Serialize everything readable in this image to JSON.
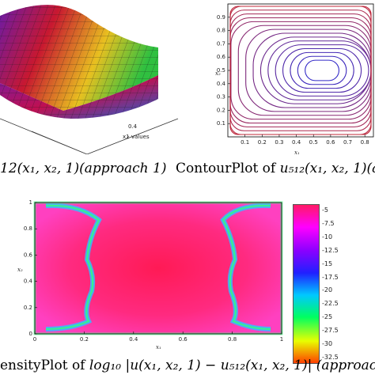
{
  "surface_plot": {
    "xticks": [
      "0.4"
    ],
    "xlabel": "x1 values",
    "caption": "12(x₁, x₂, 1)(approach 1)"
  },
  "contour_plot": {
    "caption_prefix": "ContourPlot of",
    "caption_math": "u₅₁₂(x₁, x₂, 1)(a",
    "xlabel": "x₁",
    "ylabel": "x₂",
    "colors": {
      "inner": "#2a2ad0",
      "outer": "#c0283a"
    }
  },
  "density_plot": {
    "caption_prefix": "ensityPlot of",
    "caption_math": "log₁₀ |u(x₁, x₂, 1) − u₅₁₂(x₁, x₂, 1)| (approach",
    "xlabel": "x₁",
    "ylabel": "x₂"
  },
  "colorbar": {
    "ticks": [
      "-5",
      "-7.5",
      "-10",
      "-12.5",
      "-15",
      "-17.5",
      "-20",
      "-22.5",
      "-25",
      "-27.5",
      "-30",
      "-32.5"
    ],
    "colors": [
      "#ff1a66",
      "#ff00ff",
      "#8a00ff",
      "#2020ff",
      "#00c8ff",
      "#00ff60",
      "#e8ff00",
      "#ff4000"
    ]
  },
  "chart_data": [
    {
      "type": "surface",
      "title": "",
      "xlabel": "x1 values",
      "x_ticks": [
        0.4
      ]
    },
    {
      "type": "contour",
      "title": "",
      "xlabel": "x₁",
      "ylabel": "x₂",
      "x_ticks": [
        0.1,
        0.2,
        0.3,
        0.4,
        0.5,
        0.6,
        0.7,
        0.8
      ],
      "y_ticks": [
        0.1,
        0.2,
        0.3,
        0.4,
        0.5,
        0.6,
        0.7,
        0.8,
        0.9
      ],
      "xlim": [
        0,
        0.85
      ],
      "ylim": [
        0,
        1
      ],
      "center": [
        0.55,
        0.5
      ],
      "levels": 16
    },
    {
      "type": "heatmap",
      "title": "",
      "xlabel": "x₁",
      "ylabel": "x₂",
      "x_ticks": [
        0,
        0.2,
        0.4,
        0.6,
        0.8,
        1
      ],
      "y_ticks": [
        0,
        0.2,
        0.4,
        0.6,
        0.8,
        1
      ],
      "xlim": [
        0,
        1
      ],
      "ylim": [
        0,
        1
      ],
      "colorbar_ticks": [
        -5,
        -7.5,
        -10,
        -12.5,
        -15,
        -17.5,
        -20,
        -22.5,
        -25,
        -27.5,
        -30,
        -32.5
      ]
    }
  ]
}
